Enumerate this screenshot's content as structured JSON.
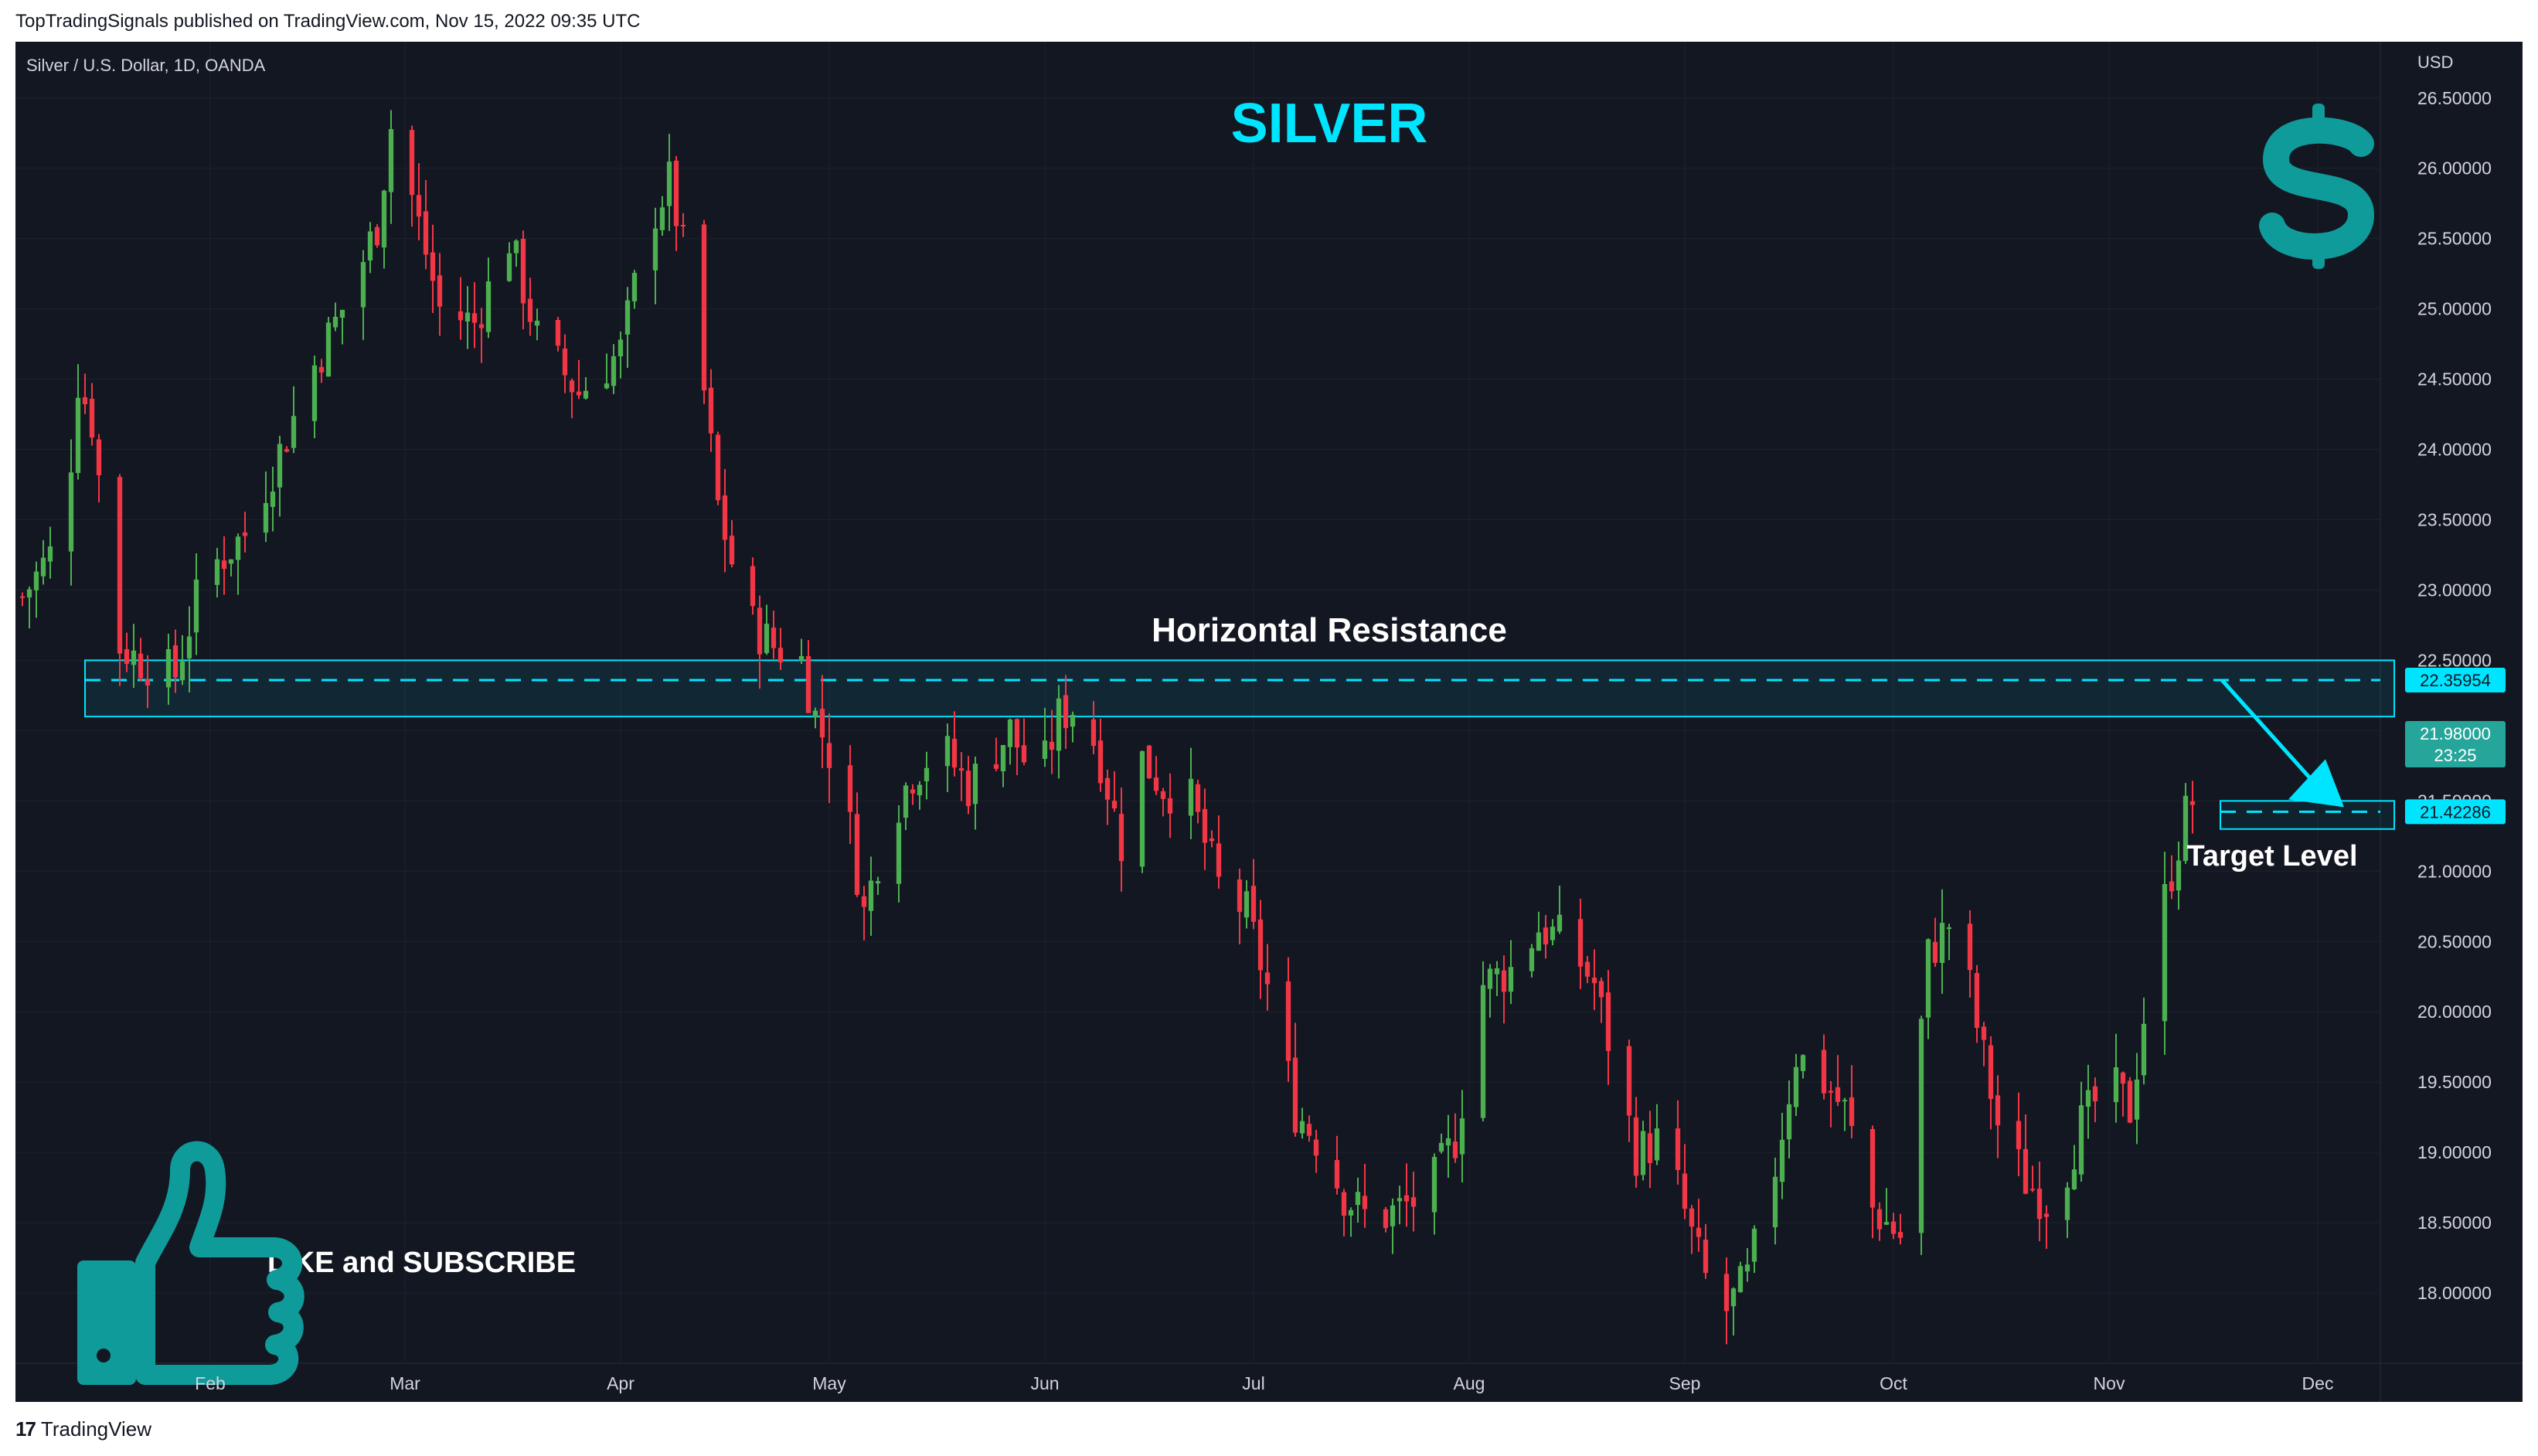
{
  "header": {
    "published": "TopTradingSignals published on TradingView.com, Nov 15, 2022 09:35 UTC"
  },
  "symbol_info": "Silver / U.S. Dollar, 1D, OANDA",
  "annotations": {
    "title": "SILVER",
    "resistance_label": "Horizontal Resistance",
    "target_label": "Target Level",
    "cta": "LIKE and SUBSCRIBE"
  },
  "price_axis": {
    "currency": "USD",
    "last_price": "21.98000",
    "countdown": "23:25",
    "resistance_price": "22.35954",
    "target_price": "21.42286"
  },
  "footer": {
    "brand": "TradingView"
  },
  "colors": {
    "bg": "#131722",
    "up": "#26a69a",
    "candle_up": "#4caf50",
    "down": "#f23645",
    "accent": "#00e5ff",
    "title": "#00e5ff",
    "icon": "#109b9b",
    "text": "#d1d4dc"
  },
  "icons": [
    "dollar-icon",
    "thumbs-up-icon",
    "tradingview-logo-icon"
  ],
  "chart_data": {
    "type": "candlestick",
    "title": "Silver / U.S. Dollar, 1D, OANDA",
    "ylim": [
      17.5,
      26.9
    ],
    "yticks": [
      18.0,
      18.5,
      19.0,
      19.5,
      20.0,
      20.5,
      21.0,
      21.5,
      22.0,
      22.5,
      23.0,
      23.5,
      24.0,
      24.5,
      25.0,
      25.5,
      26.0,
      26.5
    ],
    "xticks": [
      {
        "label": "Feb",
        "day": 27
      },
      {
        "label": "Mar",
        "day": 55
      },
      {
        "label": "Apr",
        "day": 86
      },
      {
        "label": "May",
        "day": 116
      },
      {
        "label": "Jun",
        "day": 147
      },
      {
        "label": "Jul",
        "day": 177
      },
      {
        "label": "Aug",
        "day": 208
      },
      {
        "label": "Sep",
        "day": 239
      },
      {
        "label": "Oct",
        "day": 269
      },
      {
        "label": "Nov",
        "day": 300
      },
      {
        "label": "Dec",
        "day": 330
      }
    ],
    "xrange_days": [
      -1,
      339
    ],
    "close_path": [
      [
        0,
        22.95
      ],
      [
        6,
        23.4
      ],
      [
        8,
        24.5
      ],
      [
        10,
        24.2
      ],
      [
        14,
        22.6
      ],
      [
        17,
        22.5
      ],
      [
        22,
        22.4
      ],
      [
        26,
        23.1
      ],
      [
        32,
        23.4
      ],
      [
        38,
        24.1
      ],
      [
        42,
        24.6
      ],
      [
        47,
        25.1
      ],
      [
        51,
        25.6
      ],
      [
        53,
        26.3
      ],
      [
        56,
        25.8
      ],
      [
        60,
        25.0
      ],
      [
        65,
        24.9
      ],
      [
        70,
        25.5
      ],
      [
        74,
        24.8
      ],
      [
        80,
        24.4
      ],
      [
        86,
        24.7
      ],
      [
        90,
        25.6
      ],
      [
        93,
        25.9
      ],
      [
        96,
        25.2
      ],
      [
        100,
        23.6
      ],
      [
        104,
        22.8
      ],
      [
        108,
        22.6
      ],
      [
        112,
        22.5
      ],
      [
        114,
        22.1
      ],
      [
        118,
        21.6
      ],
      [
        121,
        20.7
      ],
      [
        124,
        21.3
      ],
      [
        128,
        21.7
      ],
      [
        132,
        21.9
      ],
      [
        136,
        21.6
      ],
      [
        142,
        22.0
      ],
      [
        146,
        21.6
      ],
      [
        149,
        22.1
      ],
      [
        152,
        22.2
      ],
      [
        155,
        21.8
      ],
      [
        158,
        21.2
      ],
      [
        161,
        21.8
      ],
      [
        164,
        21.6
      ],
      [
        168,
        21.5
      ],
      [
        172,
        20.9
      ],
      [
        176,
        20.7
      ],
      [
        180,
        20.0
      ],
      [
        183,
        19.3
      ],
      [
        186,
        19.1
      ],
      [
        190,
        18.7
      ],
      [
        194,
        18.5
      ],
      [
        198,
        18.6
      ],
      [
        202,
        18.7
      ],
      [
        206,
        19.1
      ],
      [
        210,
        20.2
      ],
      [
        214,
        20.3
      ],
      [
        218,
        20.6
      ],
      [
        222,
        20.5
      ],
      [
        226,
        20.2
      ],
      [
        229,
        19.6
      ],
      [
        232,
        19.0
      ],
      [
        236,
        19.1
      ],
      [
        240,
        18.4
      ],
      [
        244,
        17.8
      ],
      [
        248,
        18.1
      ],
      [
        252,
        18.9
      ],
      [
        255,
        19.7
      ],
      [
        259,
        19.5
      ],
      [
        262,
        19.3
      ],
      [
        266,
        18.6
      ],
      [
        270,
        18.4
      ],
      [
        274,
        20.4
      ],
      [
        278,
        20.7
      ],
      [
        281,
        19.9
      ],
      [
        284,
        19.2
      ],
      [
        288,
        18.8
      ],
      [
        292,
        18.6
      ],
      [
        296,
        19.2
      ],
      [
        300,
        19.5
      ],
      [
        303,
        19.3
      ],
      [
        306,
        20.3
      ],
      [
        308,
        20.8
      ],
      [
        311,
        21.4
      ],
      [
        313,
        21.6
      ],
      [
        314,
        21.98
      ]
    ],
    "horizontal_resistance": {
      "value": 22.35954,
      "zone": [
        22.1,
        22.5
      ],
      "day_range": [
        9,
        341
      ]
    },
    "target_level": {
      "value": 21.42286,
      "zone": [
        21.3,
        21.5
      ],
      "day_range": [
        316,
        341
      ]
    }
  }
}
